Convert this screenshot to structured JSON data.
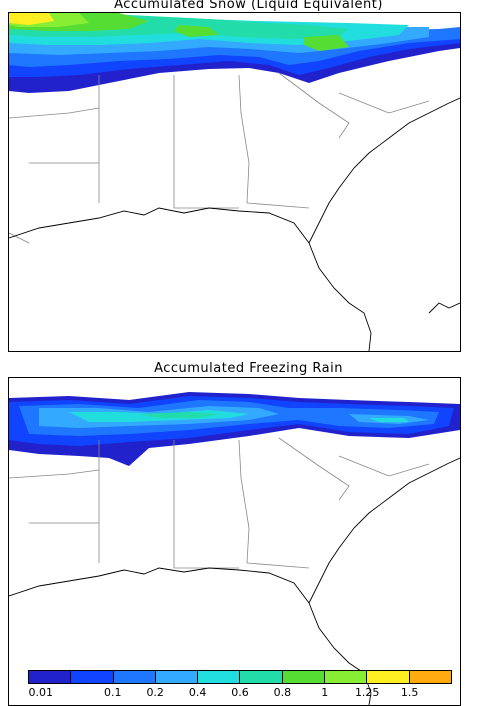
{
  "panels": [
    {
      "title": "Accumulated Snow (Liquid Equivalent)"
    },
    {
      "title": "Accumulated Freezing Rain"
    }
  ],
  "legend": {
    "colors": [
      "#2222cc",
      "#1144ff",
      "#1f77ff",
      "#33aaff",
      "#22dddd",
      "#22ddaa",
      "#55dd33",
      "#88ee33",
      "#ffee22",
      "#ffaa11"
    ],
    "labels": [
      "0.01",
      "0.1",
      "0.2",
      "0.4",
      "0.6",
      "0.8",
      "1",
      "1.25",
      "1.5"
    ]
  },
  "colors": {
    "boundary": "#888888",
    "coast": "#000000",
    "frame": "#000000"
  }
}
